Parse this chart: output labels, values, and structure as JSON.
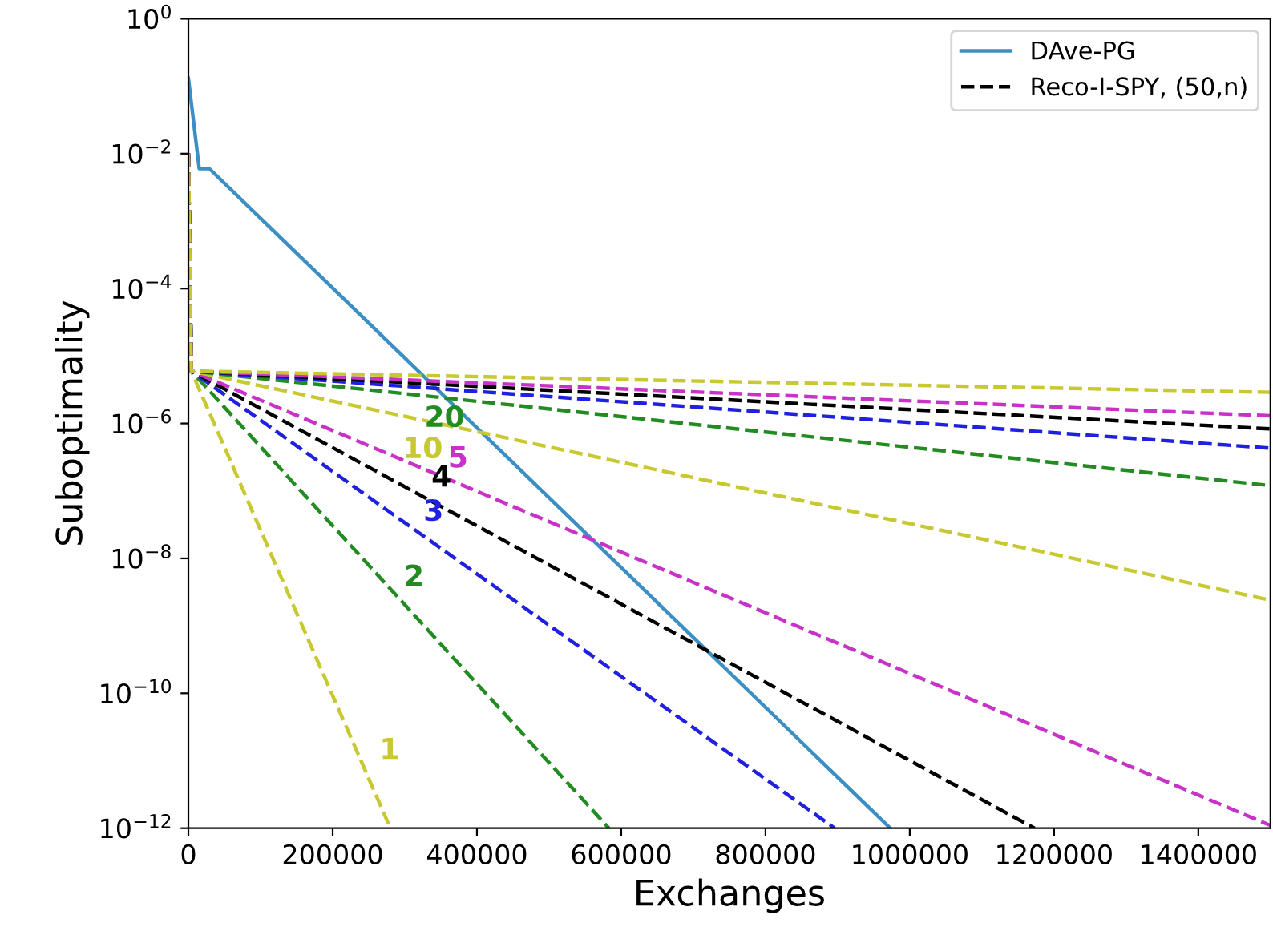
{
  "chart_data": {
    "type": "line",
    "xlabel": "Exchanges",
    "ylabel": "Suboptimality",
    "log": "y",
    "grid": false,
    "legend": "top right",
    "xlim": [
      0,
      1500000
    ],
    "xticks": [
      0,
      200000,
      400000,
      600000,
      800000,
      1000000,
      1200000,
      1400000
    ],
    "ylim": [
      1e-12,
      1
    ],
    "yticks": [
      {
        "value": 1e-12,
        "label": "10$^{−12}$"
      },
      {
        "value": 1e-10,
        "label": "10$^{−10}$"
      },
      {
        "value": 1e-08,
        "label": "10$^{−8}$"
      },
      {
        "value": 1e-06,
        "label": "10$^{−6}$"
      },
      {
        "value": 0.0001,
        "label": "10$^{−4}$"
      },
      {
        "value": 0.01,
        "label": "10$^{−2}$"
      },
      {
        "value": 1,
        "label": "10$^{0}$"
      }
    ],
    "series": [
      {
        "name": "DAve-PG",
        "color": "#3b8fc4",
        "line_style": "solid",
        "x": [
          0,
          15000,
          29000,
          973000
        ],
        "values": [
          0.13,
          0.006,
          0.006,
          1e-12
        ]
      },
      {
        "color": "#c8c832",
        "line_style": "dashed",
        "x": [
          0,
          4000,
          280000
        ],
        "values": [
          0.01,
          6e-06,
          1e-12
        ]
      },
      {
        "color": "#228b22",
        "line_style": "dashed",
        "x": [
          0,
          4000,
          583000
        ],
        "values": [
          0.01,
          6e-06,
          1e-12
        ]
      },
      {
        "color": "#2020e0",
        "line_style": "dashed",
        "x": [
          0,
          4000,
          896000
        ],
        "values": [
          0.01,
          6e-06,
          1e-12
        ]
      },
      {
        "name": "Reco-I-SPY, (50,n)",
        "color": "#000000",
        "line_style": "dashed",
        "x": [
          0,
          4000,
          1173000
        ],
        "values": [
          0.01,
          6e-06,
          1e-12
        ]
      },
      {
        "color": "#c832c8",
        "line_style": "dashed",
        "x": [
          0,
          4000,
          1500000
        ],
        "values": [
          0.01,
          6e-06,
          1.1e-12
        ]
      },
      {
        "color": "#c8c832",
        "line_style": "dashed",
        "x": [
          0,
          4000,
          1500000
        ],
        "values": [
          0.01,
          6e-06,
          2.4e-09
        ]
      },
      {
        "color": "#228b22",
        "line_style": "dashed",
        "x": [
          0,
          4000,
          1500000
        ],
        "values": [
          0.01,
          6e-06,
          1.2e-07
        ]
      },
      {
        "color": "#2020e0",
        "line_style": "dashed",
        "x": [
          0,
          4000,
          1500000
        ],
        "values": [
          0.01,
          6e-06,
          4.3e-07
        ]
      },
      {
        "color": "#000000",
        "line_style": "dashed",
        "x": [
          0,
          4000,
          1500000
        ],
        "values": [
          0.01,
          6e-06,
          8.3e-07
        ]
      },
      {
        "color": "#c832c8",
        "line_style": "dashed",
        "x": [
          0,
          4000,
          1500000
        ],
        "values": [
          0.01,
          6e-06,
          1.3e-06
        ]
      },
      {
        "color": "#c8c832",
        "line_style": "dashed",
        "x": [
          0,
          4000,
          1500000
        ],
        "values": [
          0.01,
          6e-06,
          2.9e-06
        ]
      }
    ],
    "annotations": [
      {
        "text": "1",
        "x": 251000,
        "y": 7.6e-12
      },
      {
        "text": "2",
        "x": 285000,
        "y": 2.8e-09
      },
      {
        "text": "3",
        "x": 312000,
        "y": 2.6e-08
      },
      {
        "text": "4",
        "x": 323000,
        "y": 8.3e-08
      },
      {
        "text": "5",
        "x": 346000,
        "y": 1.6e-07
      },
      {
        "text": "10",
        "x": 368000,
        "y": 9.3e-07
      },
      {
        "text": "20",
        "x": 386000,
        "y": 2.5e-06
      }
    ]
  }
}
